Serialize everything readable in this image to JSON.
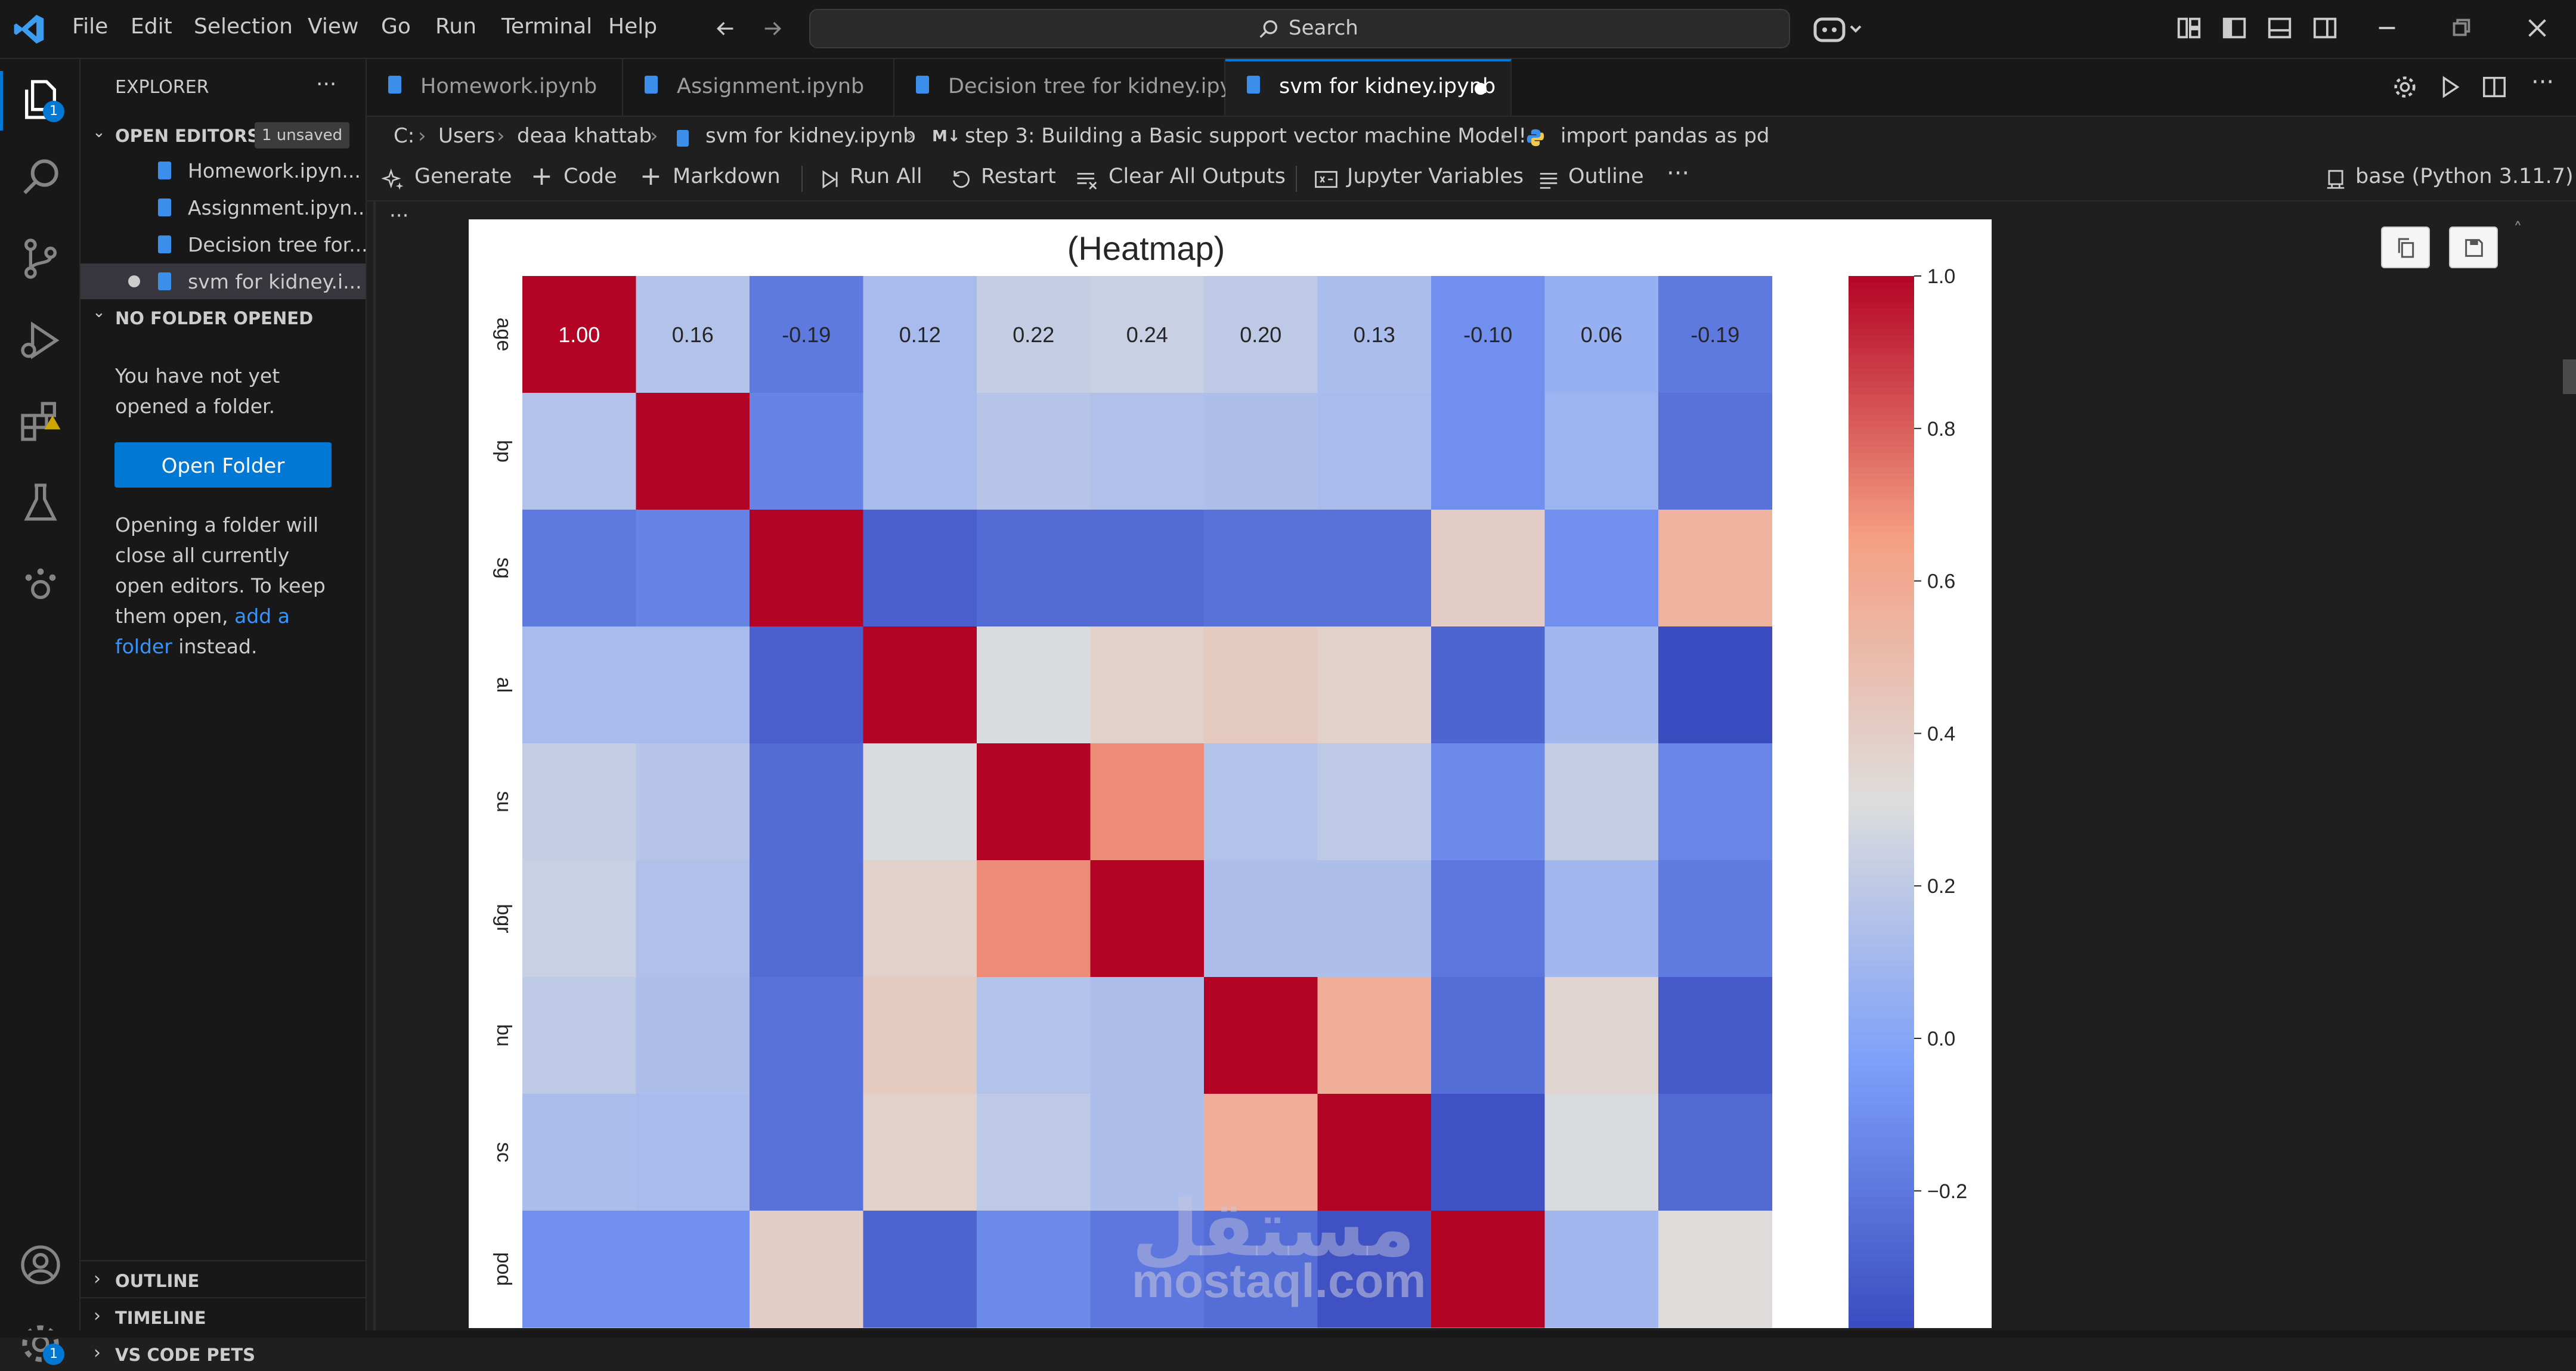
{
  "titlebar": {
    "menu": [
      "File",
      "Edit",
      "Selection",
      "View",
      "Go",
      "Run",
      "Terminal",
      "Help"
    ],
    "search_label": "Search"
  },
  "activity_badges": {
    "explorer": "1",
    "manage": "1"
  },
  "sidebar": {
    "title": "EXPLORER",
    "open_editors_label": "OPEN EDITORS",
    "unsaved_badge": "1 unsaved",
    "open_editors": [
      "Homework.ipyn...",
      "Assignment.ipyn...",
      "Decision tree for...",
      "svm for kidney.i..."
    ],
    "no_folder_label": "NO FOLDER OPENED",
    "no_folder_msg_1": "You have not yet",
    "no_folder_msg_2": "opened a folder.",
    "open_folder_button": "Open Folder",
    "info_1": "Opening a folder will",
    "info_2": "close all currently",
    "info_3": "open editors. To keep",
    "info_4a": "them open, ",
    "info_4b": "add a",
    "info_5a": "folder",
    "info_5b": " instead.",
    "outline_label": "OUTLINE",
    "timeline_label": "TIMELINE",
    "pets_label": "VS CODE PETS"
  },
  "tabs": [
    "Homework.ipynb",
    "Assignment.ipynb",
    "Decision tree for kidney.ipynb",
    "svm for kidney.ipynb"
  ],
  "breadcrumb": {
    "drive": "C:",
    "users": "Users",
    "user": "deaa khattab",
    "file": "svm for kidney.ipynb",
    "md_badge": "M↓",
    "section": "step 3: Building a Basic support vector machine Model!",
    "cell": "import pandas as pd"
  },
  "toolbar": {
    "generate": "Generate",
    "code": "Code",
    "markdown": "Markdown",
    "run_all": "Run All",
    "restart": "Restart",
    "clear_all": "Clear All Outputs",
    "variables": "Jupyter Variables",
    "outline": "Outline",
    "more": "···",
    "kernel": "base (Python 3.11.7)"
  },
  "colors": {
    "accent": "#0078d4",
    "heat_high": "#b40426",
    "heat_low": "#3b4cc0",
    "heat_mid": "#dddddd"
  },
  "watermark": {
    "arabic": "مستقل",
    "latin": "mostaql.com"
  },
  "chart_data": {
    "type": "heatmap",
    "title": "(Heatmap)",
    "rows": [
      "age",
      "bp",
      "sg",
      "al",
      "su",
      "bgr",
      "bu",
      "sc",
      "pod"
    ],
    "columns_count": 11,
    "first_row_labels": [
      "1.00",
      "0.16",
      "-0.19",
      "0.12",
      "0.22",
      "0.24",
      "0.20",
      "0.13",
      "-0.10",
      "0.06",
      "-0.19"
    ],
    "values": [
      [
        1.0,
        0.16,
        -0.19,
        0.12,
        0.22,
        0.24,
        0.2,
        0.13,
        -0.1,
        0.06,
        -0.19
      ],
      [
        0.16,
        1.0,
        -0.15,
        0.12,
        0.17,
        0.15,
        0.14,
        0.12,
        -0.1,
        0.08,
        -0.22
      ],
      [
        -0.19,
        -0.15,
        1.0,
        -0.3,
        -0.25,
        -0.25,
        -0.22,
        -0.22,
        0.4,
        -0.1,
        0.55
      ],
      [
        0.12,
        0.12,
        -0.3,
        1.0,
        0.3,
        0.38,
        0.42,
        0.38,
        -0.28,
        0.1,
        -0.38
      ],
      [
        0.22,
        0.17,
        -0.25,
        0.3,
        1.0,
        0.7,
        0.16,
        0.2,
        -0.12,
        0.22,
        -0.14
      ],
      [
        0.24,
        0.15,
        -0.25,
        0.38,
        0.7,
        1.0,
        0.14,
        0.14,
        -0.2,
        0.1,
        -0.18
      ],
      [
        0.2,
        0.14,
        -0.22,
        0.42,
        0.16,
        0.14,
        1.0,
        0.58,
        -0.24,
        0.36,
        -0.32
      ],
      [
        0.13,
        0.12,
        -0.22,
        0.38,
        0.2,
        0.14,
        0.58,
        1.0,
        -0.36,
        0.3,
        -0.26
      ],
      [
        -0.1,
        -0.1,
        0.4,
        -0.28,
        -0.12,
        -0.2,
        -0.24,
        -0.36,
        1.0,
        0.1,
        0.32
      ]
    ],
    "colorbar_ticks": [
      "1.0",
      "0.8",
      "0.6",
      "0.4",
      "0.2",
      "0.0",
      "−0.2"
    ],
    "colorbar_values": [
      1.0,
      0.8,
      0.6,
      0.4,
      0.2,
      0.0,
      -0.2
    ],
    "vmin": -0.38,
    "vmax": 1.0
  }
}
